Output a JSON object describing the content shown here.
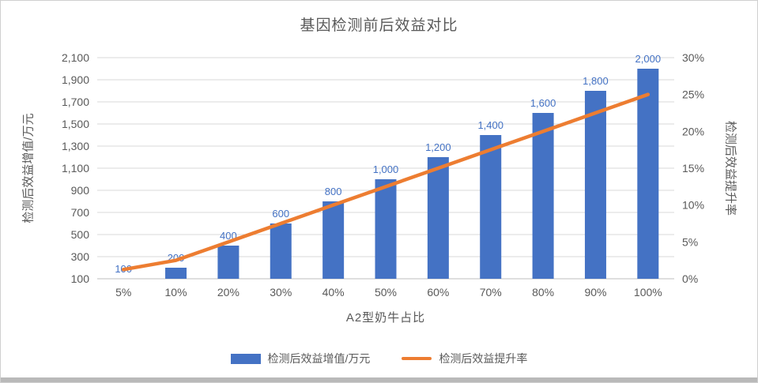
{
  "window": {
    "background": "#ffffff",
    "border_color": "#cfcfcf",
    "bottom_bar_color": "#b9b9b9"
  },
  "chart_data": {
    "type": "combo",
    "title": "基因检测前后效益对比",
    "xlabel": "A2型奶牛占比",
    "categories": [
      "5%",
      "10%",
      "20%",
      "30%",
      "40%",
      "50%",
      "60%",
      "70%",
      "80%",
      "90%",
      "100%"
    ],
    "series": [
      {
        "name": "检测后效益增值/万元",
        "type": "bar",
        "axis": "left",
        "color": "#4472C4",
        "values": [
          100,
          200,
          400,
          600,
          800,
          1000,
          1200,
          1400,
          1600,
          1800,
          2000
        ],
        "data_labels": [
          "100",
          "200",
          "400",
          "600",
          "800",
          "1,000",
          "1,200",
          "1,400",
          "1,600",
          "1,800",
          "2,000"
        ]
      },
      {
        "name": "检测后效益提升率",
        "type": "line",
        "axis": "right",
        "color": "#ED7D31",
        "values": [
          1.25,
          2.5,
          5,
          7.5,
          10,
          12.5,
          15,
          17.5,
          20,
          22.5,
          25
        ]
      }
    ],
    "left_axis": {
      "label": "检测后效益增值/万元",
      "min": 100,
      "max": 2100,
      "step": 200,
      "tick_labels": [
        "100",
        "300",
        "500",
        "700",
        "900",
        "1,100",
        "1,300",
        "1,500",
        "1,700",
        "1,900",
        "2,100"
      ]
    },
    "right_axis": {
      "label": "检测后效益提升率",
      "min": 0,
      "max": 30,
      "step": 5,
      "suffix": "%",
      "tick_labels": [
        "0%",
        "5%",
        "10%",
        "15%",
        "20%",
        "25%",
        "30%"
      ]
    },
    "grid": true,
    "gridline_color": "#d9d9d9",
    "axis_text_color": "#595959",
    "legend_position": "bottom"
  }
}
